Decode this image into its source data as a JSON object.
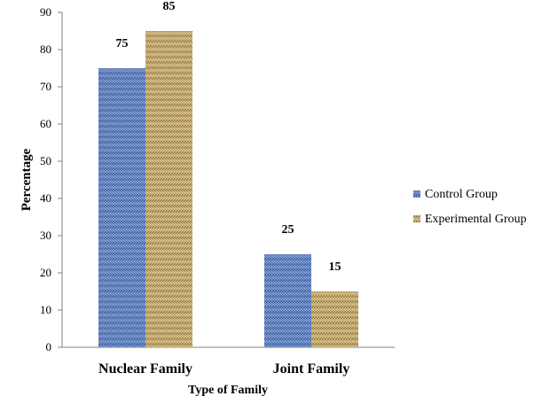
{
  "chart_data": {
    "type": "bar",
    "title": "",
    "xlabel": "Type of Family",
    "ylabel": "Percentage",
    "categories": [
      "Nuclear Family",
      "Joint Family"
    ],
    "series": [
      {
        "name": "Control Group",
        "values": [
          75,
          25
        ],
        "color": "#4a6fb5"
      },
      {
        "name": "Experimental Group",
        "values": [
          85,
          15
        ],
        "color": "#b89a5a"
      }
    ],
    "ylim": [
      0,
      90
    ],
    "yticks": [
      "0",
      "10",
      "20",
      "30",
      "40",
      "50",
      "60",
      "70",
      "80",
      "90"
    ],
    "data_labels": [
      [
        "75",
        "25"
      ],
      [
        "85",
        "15"
      ]
    ],
    "grid": false,
    "legend_position": "right"
  }
}
